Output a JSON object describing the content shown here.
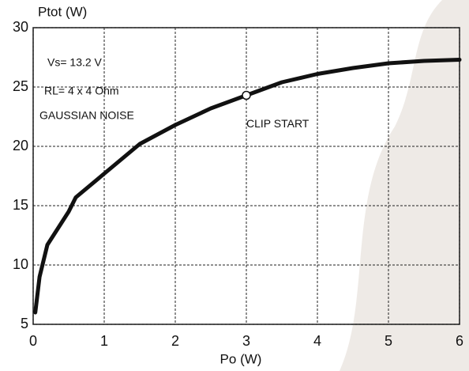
{
  "chart_data": {
    "type": "line",
    "ylabel": "Ptot (W)",
    "xlabel": "Po (W)",
    "x": [
      0.03,
      0.09,
      0.2,
      0.5,
      0.6,
      1,
      1.5,
      2,
      2.5,
      3,
      3.5,
      4,
      4.5,
      5,
      5.5,
      6
    ],
    "values": [
      6,
      9,
      11.7,
      14.5,
      15.7,
      17.7,
      20.2,
      21.8,
      23.2,
      24.3,
      25.4,
      26.1,
      26.6,
      27,
      27.2,
      27.3
    ],
    "color": "#111111",
    "xlim": [
      0,
      6
    ],
    "xticks": [
      0,
      1,
      2,
      3,
      4,
      5,
      6
    ],
    "ylim": [
      5,
      30
    ],
    "yticks": [
      5,
      10,
      15,
      20,
      25,
      30
    ],
    "grid": true,
    "annotations": [
      "Vs= 13.2 V",
      "RL= 4 x 4 Ohm",
      "GAUSSIAN NOISE"
    ],
    "marker": {
      "x": 3,
      "y": 24.3,
      "label": "CLIP START"
    }
  }
}
